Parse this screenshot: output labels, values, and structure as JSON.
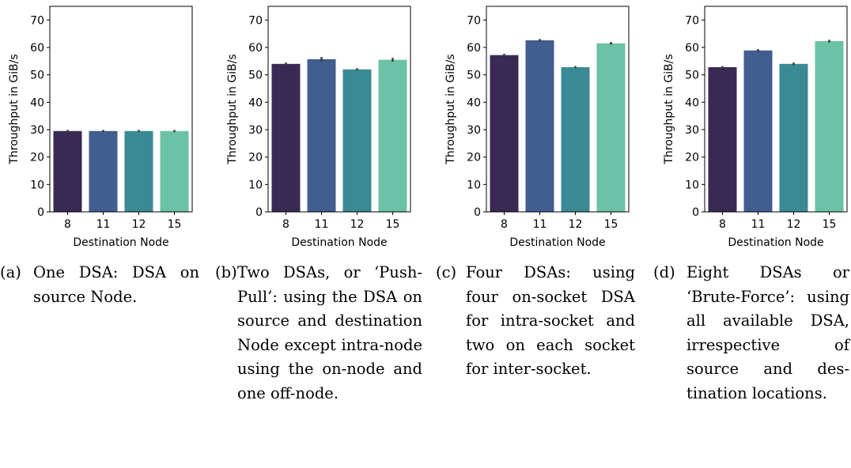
{
  "chart_data": [
    {
      "type": "bar",
      "xlabel": "Destination Node",
      "ylabel": "Throughput in GiB/s",
      "ylim": [
        0,
        75
      ],
      "yticks": [
        0,
        10,
        20,
        30,
        40,
        50,
        60,
        70
      ],
      "categories": [
        "8",
        "11",
        "12",
        "15"
      ],
      "values": [
        29.5,
        29.5,
        29.5,
        29.5
      ],
      "error_bars": [
        0.4,
        0.4,
        0.4,
        0.4
      ],
      "colors": [
        "#382a54",
        "#425d8f",
        "#3a8a95",
        "#6cc2a6"
      ],
      "caption_tag": "(a)",
      "caption": "One DSA: DSA on source Node."
    },
    {
      "type": "bar",
      "xlabel": "Destination Node",
      "ylabel": "Throughput in GiB/s",
      "ylim": [
        0,
        75
      ],
      "yticks": [
        0,
        10,
        20,
        30,
        40,
        50,
        60,
        70
      ],
      "categories": [
        "8",
        "11",
        "12",
        "15"
      ],
      "values": [
        54.0,
        55.7,
        52.0,
        55.5
      ],
      "error_bars": [
        0.5,
        0.8,
        0.4,
        0.7
      ],
      "colors": [
        "#382a54",
        "#425d8f",
        "#3a8a95",
        "#6cc2a6"
      ],
      "caption_tag": "(b)",
      "caption": "Two DSAs, or ‘Push-Pull’: us­ing the DSA on source and destin­ation Node except intra-node using the on-node and one off-node."
    },
    {
      "type": "bar",
      "xlabel": "Destination Node",
      "ylabel": "Throughput in GiB/s",
      "ylim": [
        0,
        75
      ],
      "yticks": [
        0,
        10,
        20,
        30,
        40,
        50,
        60,
        70
      ],
      "categories": [
        "8",
        "11",
        "12",
        "15"
      ],
      "values": [
        57.2,
        62.6,
        52.8,
        61.5
      ],
      "error_bars": [
        0.5,
        0.5,
        0.4,
        0.5
      ],
      "colors": [
        "#382a54",
        "#425d8f",
        "#3a8a95",
        "#6cc2a6"
      ],
      "caption_tag": "(c)",
      "caption": "Four DSAs: using four on-socket DSA for intra-socket and two on each socket for inter-socket."
    },
    {
      "type": "bar",
      "xlabel": "Destination Node",
      "ylabel": "Throughput in GiB/s",
      "ylim": [
        0,
        75
      ],
      "yticks": [
        0,
        10,
        20,
        30,
        40,
        50,
        60,
        70
      ],
      "categories": [
        "8",
        "11",
        "12",
        "15"
      ],
      "values": [
        52.8,
        58.9,
        54.0,
        62.3
      ],
      "error_bars": [
        0.4,
        0.5,
        0.5,
        0.5
      ],
      "colors": [
        "#382a54",
        "#425d8f",
        "#3a8a95",
        "#6cc2a6"
      ],
      "caption_tag": "(d)",
      "caption": "Eight DSAs or ‘Brute-Force’: us­ing all available DSA, irrespective of source and des­tination locations."
    }
  ]
}
